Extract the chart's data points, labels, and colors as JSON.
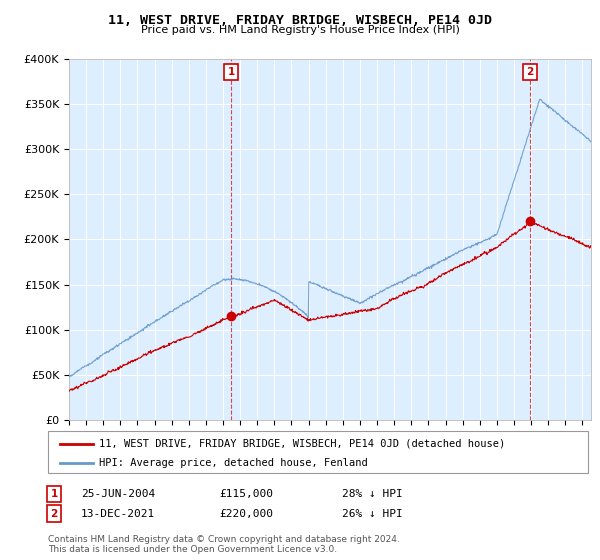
{
  "title": "11, WEST DRIVE, FRIDAY BRIDGE, WISBECH, PE14 0JD",
  "subtitle": "Price paid vs. HM Land Registry's House Price Index (HPI)",
  "ylabel_ticks": [
    "£0",
    "£50K",
    "£100K",
    "£150K",
    "£200K",
    "£250K",
    "£300K",
    "£350K",
    "£400K"
  ],
  "ylim": [
    0,
    400000
  ],
  "xlim_start": 1995.0,
  "xlim_end": 2025.5,
  "transaction1_date": 2004.48,
  "transaction1_value": 115000,
  "transaction1_label": "1",
  "transaction2_date": 2021.95,
  "transaction2_value": 220000,
  "transaction2_label": "2",
  "legend_property": "11, WEST DRIVE, FRIDAY BRIDGE, WISBECH, PE14 0JD (detached house)",
  "legend_hpi": "HPI: Average price, detached house, Fenland",
  "note1_label": "1",
  "note1_date": "25-JUN-2004",
  "note1_price": "£115,000",
  "note1_hpi": "28% ↓ HPI",
  "note2_label": "2",
  "note2_date": "13-DEC-2021",
  "note2_price": "£220,000",
  "note2_hpi": "26% ↓ HPI",
  "footer": "Contains HM Land Registry data © Crown copyright and database right 2024.\nThis data is licensed under the Open Government Licence v3.0.",
  "property_color": "#cc0000",
  "hpi_color": "#6699cc",
  "chart_bg_color": "#ddeeff",
  "grid_color": "#ffffff",
  "background_color": "#ffffff",
  "vline_color": "#cc0000"
}
